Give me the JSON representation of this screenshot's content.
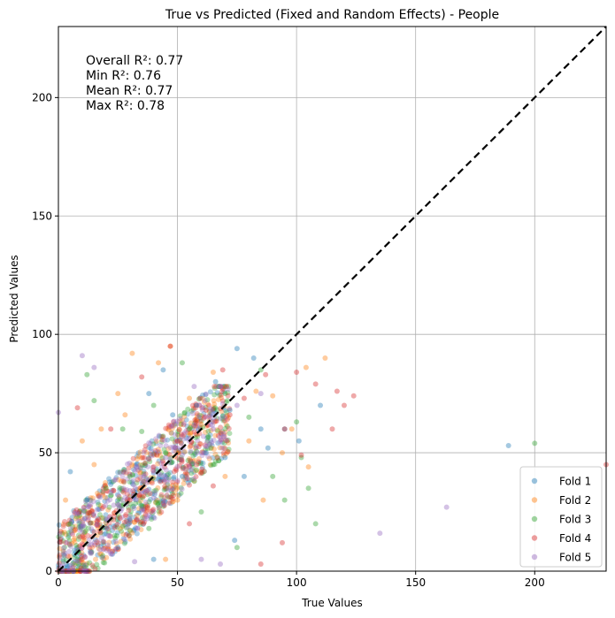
{
  "chart_data": {
    "type": "scatter",
    "title": "True vs Predicted (Fixed and Random Effects) - People",
    "xlabel": "True Values",
    "ylabel": "Predicted Values",
    "xlim": [
      0,
      230
    ],
    "ylim": [
      0,
      230
    ],
    "xticks": [
      0,
      50,
      100,
      150,
      200
    ],
    "yticks": [
      0,
      50,
      100,
      150,
      200
    ],
    "grid": true,
    "legend_position": "lower-right",
    "reference_line": {
      "style": "dashed",
      "color": "#000000",
      "x": [
        0,
        230
      ],
      "y": [
        0,
        230
      ]
    },
    "annotations": [
      "Overall R²: 0.77",
      "Min R²: 0.76",
      "Mean R²: 0.77",
      "Max R²: 0.78"
    ],
    "series": [
      {
        "name": "Fold 1",
        "color": "#1f77b4",
        "points": [
          [
            189,
            53
          ],
          [
            75,
            94
          ],
          [
            72,
            68
          ],
          [
            95,
            60
          ],
          [
            38,
            75
          ],
          [
            40,
            5
          ],
          [
            74,
            13
          ],
          [
            52,
            40
          ],
          [
            62,
            50
          ],
          [
            30,
            22
          ],
          [
            48,
            66
          ],
          [
            82,
            90
          ],
          [
            85,
            60
          ],
          [
            70,
            48
          ],
          [
            25,
            10
          ],
          [
            58,
            70
          ],
          [
            66,
            80
          ],
          [
            88,
            52
          ],
          [
            101,
            55
          ],
          [
            110,
            70
          ],
          [
            12,
            30
          ],
          [
            5,
            42
          ],
          [
            20,
            18
          ],
          [
            44,
            85
          ],
          [
            78,
            40
          ]
        ]
      },
      {
        "name": "Fold 2",
        "color": "#ff7f0e",
        "points": [
          [
            31,
            92
          ],
          [
            47,
            95
          ],
          [
            112,
            90
          ],
          [
            104,
            86
          ],
          [
            83,
            76
          ],
          [
            90,
            74
          ],
          [
            65,
            84
          ],
          [
            55,
            73
          ],
          [
            42,
            88
          ],
          [
            25,
            75
          ],
          [
            35,
            35
          ],
          [
            18,
            60
          ],
          [
            70,
            40
          ],
          [
            94,
            50
          ],
          [
            105,
            44
          ],
          [
            98,
            60
          ],
          [
            60,
            62
          ],
          [
            50,
            30
          ],
          [
            80,
            55
          ],
          [
            15,
            45
          ],
          [
            3,
            30
          ],
          [
            10,
            55
          ],
          [
            45,
            5
          ],
          [
            28,
            66
          ],
          [
            86,
            30
          ]
        ]
      },
      {
        "name": "Fold 3",
        "color": "#2ca02c",
        "points": [
          [
            200,
            54
          ],
          [
            52,
            88
          ],
          [
            35,
            59
          ],
          [
            27,
            60
          ],
          [
            12,
            83
          ],
          [
            105,
            35
          ],
          [
            108,
            20
          ],
          [
            70,
            75
          ],
          [
            80,
            65
          ],
          [
            90,
            40
          ],
          [
            30,
            40
          ],
          [
            45,
            50
          ],
          [
            60,
            25
          ],
          [
            75,
            10
          ],
          [
            40,
            70
          ],
          [
            55,
            60
          ],
          [
            85,
            85
          ],
          [
            95,
            30
          ],
          [
            102,
            48
          ],
          [
            20,
            35
          ],
          [
            5,
            20
          ],
          [
            65,
            45
          ],
          [
            38,
            18
          ],
          [
            100,
            63
          ],
          [
            15,
            72
          ]
        ]
      },
      {
        "name": "Fold 4",
        "color": "#d62728",
        "points": [
          [
            230,
            45
          ],
          [
            47,
            95
          ],
          [
            69,
            85
          ],
          [
            87,
            83
          ],
          [
            124,
            74
          ],
          [
            117,
            76
          ],
          [
            120,
            70
          ],
          [
            95,
            60
          ],
          [
            102,
            49
          ],
          [
            62,
            68
          ],
          [
            50,
            55
          ],
          [
            40,
            44
          ],
          [
            30,
            30
          ],
          [
            85,
            3
          ],
          [
            94,
            12
          ],
          [
            72,
            66
          ],
          [
            78,
            73
          ],
          [
            100,
            84
          ],
          [
            108,
            79
          ],
          [
            65,
            36
          ],
          [
            22,
            60
          ],
          [
            8,
            69
          ],
          [
            55,
            20
          ],
          [
            35,
            82
          ],
          [
            115,
            60
          ]
        ]
      },
      {
        "name": "Fold 5",
        "color": "#9467bd",
        "points": [
          [
            163,
            27
          ],
          [
            135,
            16
          ],
          [
            10,
            91
          ],
          [
            15,
            86
          ],
          [
            60,
            5
          ],
          [
            32,
            4
          ],
          [
            45,
            48
          ],
          [
            50,
            52
          ],
          [
            55,
            56
          ],
          [
            35,
            38
          ],
          [
            25,
            28
          ],
          [
            65,
            60
          ],
          [
            70,
            65
          ],
          [
            40,
            42
          ],
          [
            20,
            22
          ],
          [
            30,
            34
          ],
          [
            60,
            50
          ],
          [
            75,
            70
          ],
          [
            45,
            40
          ],
          [
            85,
            75
          ],
          [
            0,
            67
          ],
          [
            15,
            12
          ],
          [
            8,
            9
          ],
          [
            68,
            3
          ],
          [
            57,
            78
          ]
        ]
      }
    ]
  }
}
